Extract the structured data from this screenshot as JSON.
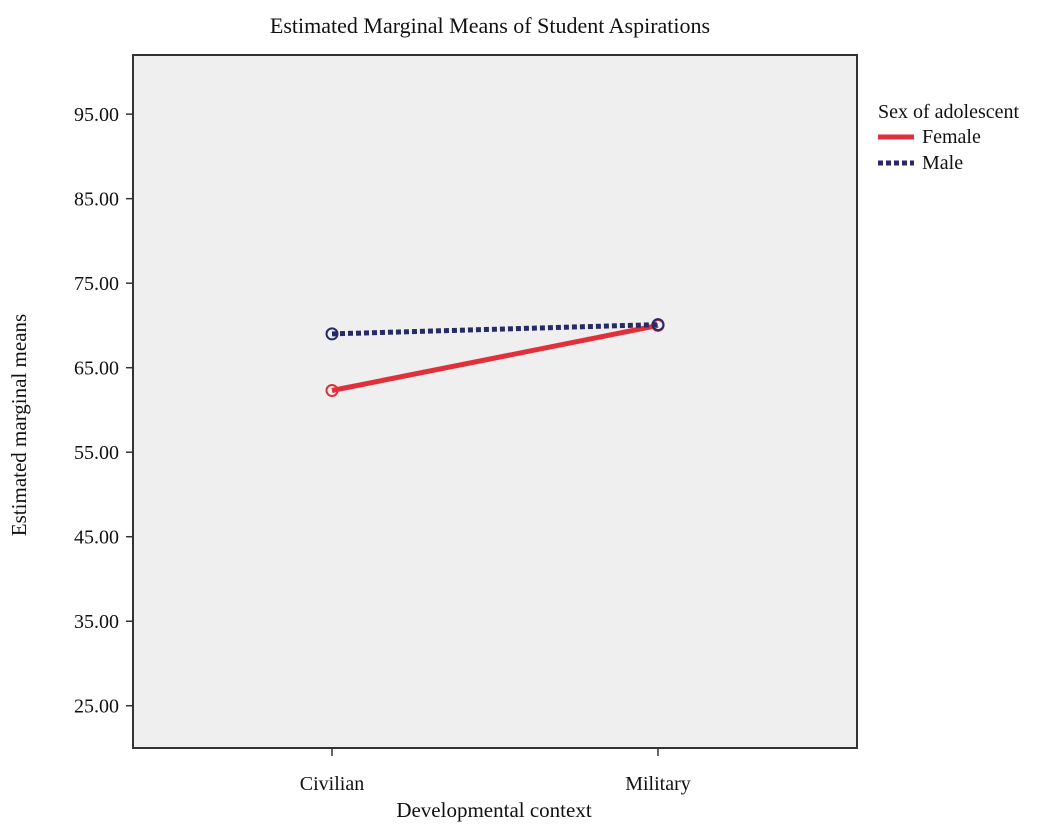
{
  "chart_data": {
    "type": "line",
    "title": "Estimated Marginal Means of Student Aspirations",
    "xlabel": "Developmental context",
    "ylabel": "Estimated marginal means",
    "categories": [
      "Civilian",
      "Military"
    ],
    "ylim": [
      20,
      102
    ],
    "yticks": [
      25,
      35,
      45,
      55,
      65,
      75,
      85,
      95
    ],
    "ytick_labels": [
      "25.00",
      "35.00",
      "45.00",
      "55.00",
      "65.00",
      "75.00",
      "85.00",
      "95.00"
    ],
    "grid": false,
    "plot_background": "#efefef",
    "legend": {
      "title": "Sex of adolescent",
      "placement": "right"
    },
    "series": [
      {
        "name": "Female",
        "values": [
          62.3,
          70.0
        ],
        "color": "#e0313b",
        "style": "solid"
      },
      {
        "name": "Male",
        "values": [
          69.0,
          70.1
        ],
        "color": "#262a6b",
        "style": "dotted"
      }
    ]
  }
}
